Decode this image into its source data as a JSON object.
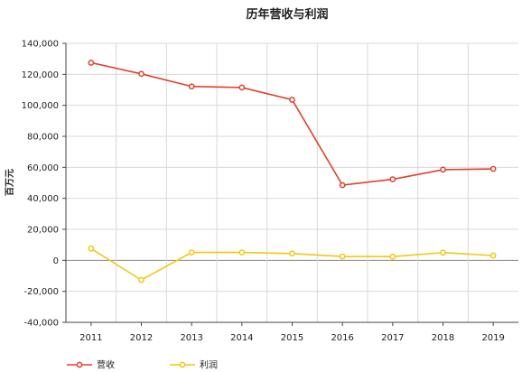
{
  "chart_data": {
    "type": "line",
    "title": "历年营收与利润",
    "xlabel": "",
    "ylabel": "百万元",
    "categories": [
      "2011",
      "2012",
      "2013",
      "2014",
      "2015",
      "2016",
      "2017",
      "2018",
      "2019"
    ],
    "ylim": [
      -40000,
      140000
    ],
    "yticks": [
      -40000,
      -20000,
      0,
      20000,
      40000,
      60000,
      80000,
      100000,
      120000,
      140000
    ],
    "ytick_labels": [
      "-40,000",
      "-20,000",
      "0",
      "20,000",
      "40,000",
      "60,000",
      "80,000",
      "100,000",
      "120,000",
      "140,000"
    ],
    "grid": true,
    "legend_position": "bottom-left",
    "series": [
      {
        "name": "营收",
        "color": "#e0412c",
        "values": [
          127500,
          120300,
          112200,
          111500,
          103600,
          48500,
          52300,
          58500,
          59000
        ]
      },
      {
        "name": "利润",
        "color": "#f2c80f",
        "values": [
          7600,
          -12700,
          5100,
          5100,
          4400,
          2500,
          2400,
          5000,
          3100
        ]
      }
    ]
  }
}
